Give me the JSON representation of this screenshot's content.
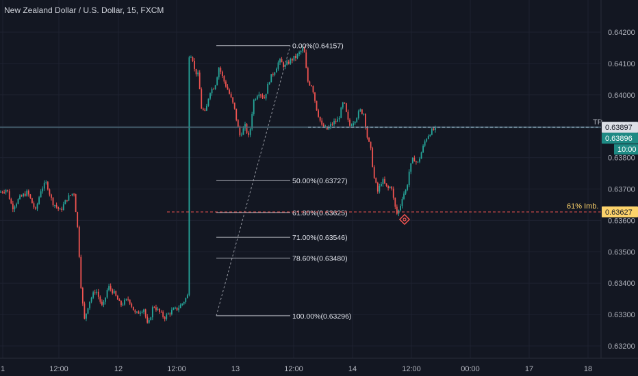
{
  "header": {
    "title": "New Zealand Dollar / U.S. Dollar, 15, FXCM"
  },
  "colors": {
    "background": "#131722",
    "up": "#26a69a",
    "down": "#ef5350",
    "grid": "#1e2230",
    "axis_text": "#b2b5be",
    "fib_line": "#d1d4dc",
    "tp_line": "#4c6a7a",
    "imbalance_line": "#ef5350",
    "imbalance_tag": "#fdd36b",
    "price_tag": "#1e8a84",
    "tp_tag": "#dcdfe6"
  },
  "chart_data": {
    "type": "candlestick",
    "title": "New Zealand Dollar / U.S. Dollar, 15, FXCM",
    "ylim": [
      0.632,
      0.6425
    ],
    "y_ticks": [
      "0.64200",
      "0.64100",
      "0.64000",
      "0.63900",
      "0.63800",
      "0.63700",
      "0.63600",
      "0.63500",
      "0.63400",
      "0.63300",
      "0.63200"
    ],
    "x_ticks": [
      "1",
      "12:00",
      "12",
      "12:00",
      "13",
      "12:00",
      "14",
      "12:00",
      "00:00",
      "17",
      "18"
    ],
    "price_path": [
      [
        0,
        0.6369
      ],
      [
        10,
        0.637
      ],
      [
        18,
        0.6364
      ],
      [
        28,
        0.6367
      ],
      [
        40,
        0.6369
      ],
      [
        52,
        0.6363
      ],
      [
        60,
        0.637
      ],
      [
        68,
        0.6372
      ],
      [
        76,
        0.6366
      ],
      [
        88,
        0.6363
      ],
      [
        98,
        0.6367
      ],
      [
        108,
        0.6369
      ],
      [
        114,
        0.6356
      ],
      [
        118,
        0.634
      ],
      [
        123,
        0.6328
      ],
      [
        130,
        0.6334
      ],
      [
        140,
        0.6338
      ],
      [
        150,
        0.6332
      ],
      [
        158,
        0.6339
      ],
      [
        166,
        0.6337
      ],
      [
        176,
        0.6333
      ],
      [
        188,
        0.6335
      ],
      [
        198,
        0.633
      ],
      [
        210,
        0.6332
      ],
      [
        216,
        0.6326
      ],
      [
        224,
        0.6333
      ],
      [
        232,
        0.6331
      ],
      [
        240,
        0.6329
      ],
      [
        250,
        0.6331
      ],
      [
        260,
        0.6332
      ],
      [
        268,
        0.6334
      ],
      [
        277,
        0.6337
      ],
      [
        279,
        0.6415
      ],
      [
        284,
        0.6408
      ],
      [
        290,
        0.6406
      ],
      [
        294,
        0.6396
      ],
      [
        300,
        0.6394
      ],
      [
        306,
        0.6401
      ],
      [
        314,
        0.6403
      ],
      [
        320,
        0.6409
      ],
      [
        326,
        0.6405
      ],
      [
        334,
        0.6401
      ],
      [
        342,
        0.6396
      ],
      [
        350,
        0.6387
      ],
      [
        358,
        0.639
      ],
      [
        364,
        0.6386
      ],
      [
        370,
        0.6398
      ],
      [
        378,
        0.6401
      ],
      [
        386,
        0.6399
      ],
      [
        394,
        0.6405
      ],
      [
        402,
        0.6408
      ],
      [
        408,
        0.6411
      ],
      [
        416,
        0.6409
      ],
      [
        424,
        0.6411
      ],
      [
        432,
        0.6412
      ],
      [
        440,
        0.6414
      ],
      [
        444,
        0.6415
      ],
      [
        446,
        0.641
      ],
      [
        450,
        0.6404
      ],
      [
        456,
        0.6403
      ],
      [
        462,
        0.6396
      ],
      [
        470,
        0.639
      ],
      [
        478,
        0.6389
      ],
      [
        486,
        0.6391
      ],
      [
        494,
        0.6392
      ],
      [
        502,
        0.6398
      ],
      [
        510,
        0.639
      ],
      [
        518,
        0.6392
      ],
      [
        526,
        0.6395
      ],
      [
        532,
        0.6394
      ],
      [
        536,
        0.6387
      ],
      [
        542,
        0.6382
      ],
      [
        546,
        0.6374
      ],
      [
        552,
        0.6369
      ],
      [
        558,
        0.6373
      ],
      [
        566,
        0.637
      ],
      [
        572,
        0.6371
      ],
      [
        576,
        0.6365
      ],
      [
        580,
        0.6362
      ],
      [
        584,
        0.6364
      ],
      [
        588,
        0.6368
      ],
      [
        594,
        0.637
      ],
      [
        598,
        0.6376
      ],
      [
        604,
        0.638
      ],
      [
        610,
        0.6378
      ],
      [
        616,
        0.6382
      ],
      [
        622,
        0.6386
      ],
      [
        628,
        0.6388
      ],
      [
        634,
        0.6389
      ]
    ],
    "fib_levels": [
      {
        "label": "0.00%(0.64157)",
        "price": 0.64157
      },
      {
        "label": "50.00%(0.63727)",
        "price": 0.63727
      },
      {
        "label": "61.80%(0.63625)",
        "price": 0.63625
      },
      {
        "label": "71.00%(0.63546)",
        "price": 0.63546
      },
      {
        "label": "78.60%(0.63480)",
        "price": 0.6348
      },
      {
        "label": "100.00%(0.63296)",
        "price": 0.63296
      }
    ],
    "tp": {
      "label": "TP",
      "price": 0.63897
    },
    "imbalance": {
      "label": "61%  Imb.",
      "price": 0.63627
    },
    "current": {
      "price": "0.63896",
      "countdown": "10:00"
    },
    "low_marker_price": 0.63603
  }
}
